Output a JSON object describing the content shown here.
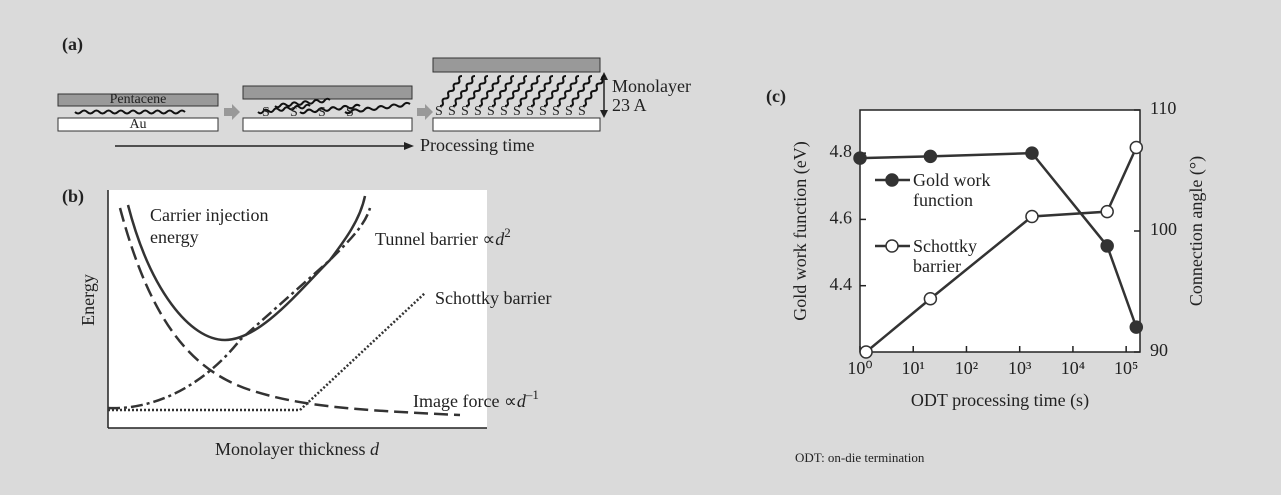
{
  "panel_a": {
    "label": "(a)",
    "layer_top": "Pentacene",
    "layer_bottom": "Au",
    "sulfur": "S",
    "monolayer": "Monolayer",
    "thickness": "23 A",
    "axis": "Processing time"
  },
  "panel_b": {
    "label": "(b)",
    "ylabel": "Energy",
    "xlabel": "Monolayer thickness ",
    "xlabel_symbol": "d",
    "carrier_injection": [
      "Carrier injection",
      "energy"
    ],
    "tunnel": "Tunnel barrier ∝",
    "tunnel_symbol": "d",
    "tunnel_power": "2",
    "schottky": "Schottky barrier",
    "image_force": "Image force ∝",
    "image_symbol": "d",
    "image_power": "–1"
  },
  "chart_data": {
    "type": "line",
    "title": "(c)",
    "xlabel": "ODT processing time (s)",
    "ylabel": "Gold work function (eV)",
    "y2label": "Connection angle (°)",
    "xscale": "log",
    "xlim": [
      1,
      182000
    ],
    "xticks": [
      {
        "value": 1,
        "label": "10⁰"
      },
      {
        "value": 10,
        "label": "10¹"
      },
      {
        "value": 100,
        "label": "10²"
      },
      {
        "value": 1000,
        "label": "10³"
      },
      {
        "value": 10000,
        "label": "10⁴"
      },
      {
        "value": 100000,
        "label": "10⁵"
      }
    ],
    "ylim": [
      4.2,
      4.93
    ],
    "yticks": [
      4.4,
      4.6,
      4.8
    ],
    "y2lim": [
      90,
      110
    ],
    "y2ticks": [
      90,
      100,
      110
    ],
    "legend": "upper left",
    "series": [
      {
        "name": "Gold work function",
        "color": "#333333",
        "marker": "filled",
        "x": [
          1,
          21,
          1700,
          44000,
          155000
        ],
        "values": [
          4.785,
          4.79,
          4.8,
          4.52,
          4.275
        ]
      },
      {
        "name": "Schottky barrier",
        "color": "#333333",
        "marker": "open",
        "axis": "y2",
        "x": [
          1.3,
          21,
          1700,
          44000,
          155000
        ],
        "values": [
          90,
          94.4,
          101.2,
          101.6,
          106.9
        ]
      }
    ],
    "note": "ODT: on-die termination"
  }
}
